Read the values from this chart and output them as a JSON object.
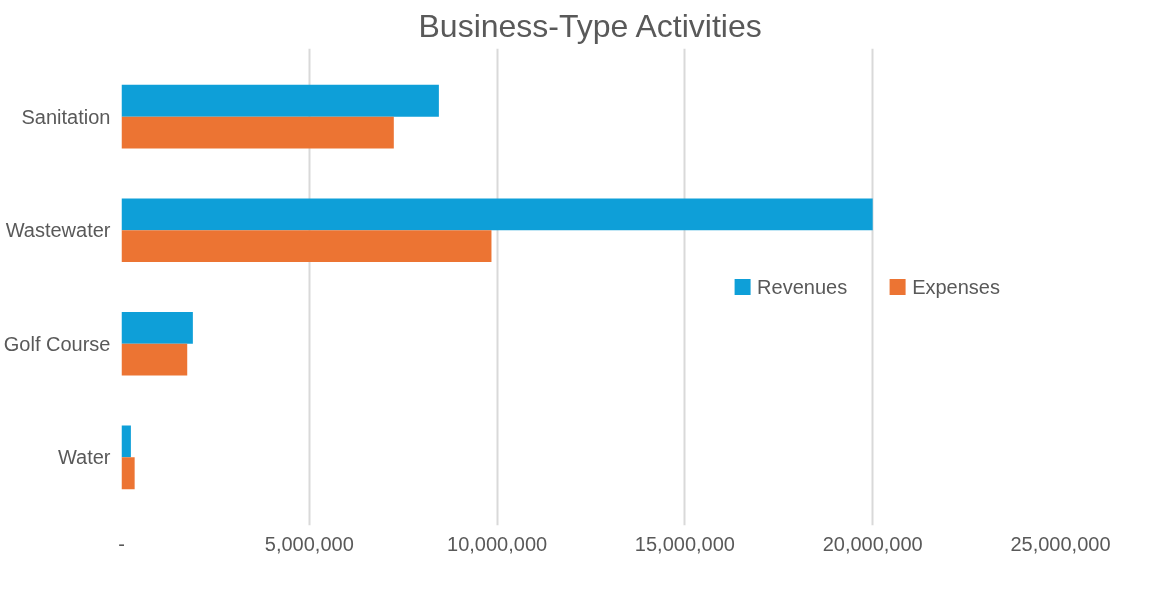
{
  "chart_data": {
    "type": "bar",
    "orientation": "horizontal",
    "title": "Business-Type Activities",
    "categories": [
      "Sanitation",
      "Wastewater",
      "Golf Course",
      "Water"
    ],
    "series": [
      {
        "name": "Revenues",
        "color": "#0e9fd8",
        "values": [
          8450000,
          20000000,
          1900000,
          250000
        ]
      },
      {
        "name": "Expenses",
        "color": "#ec7433",
        "values": [
          7250000,
          9850000,
          1750000,
          350000
        ]
      }
    ],
    "xlim": [
      0,
      25000000
    ],
    "xticks": [
      {
        "value": 0,
        "label": "-"
      },
      {
        "value": 5000000,
        "label": "5,000,000"
      },
      {
        "value": 10000000,
        "label": "10,000,000"
      },
      {
        "value": 15000000,
        "label": "15,000,000"
      },
      {
        "value": 20000000,
        "label": "20,000,000"
      },
      {
        "value": 25000000,
        "label": "25,000,000"
      }
    ],
    "grid": "x",
    "legend": "right"
  }
}
